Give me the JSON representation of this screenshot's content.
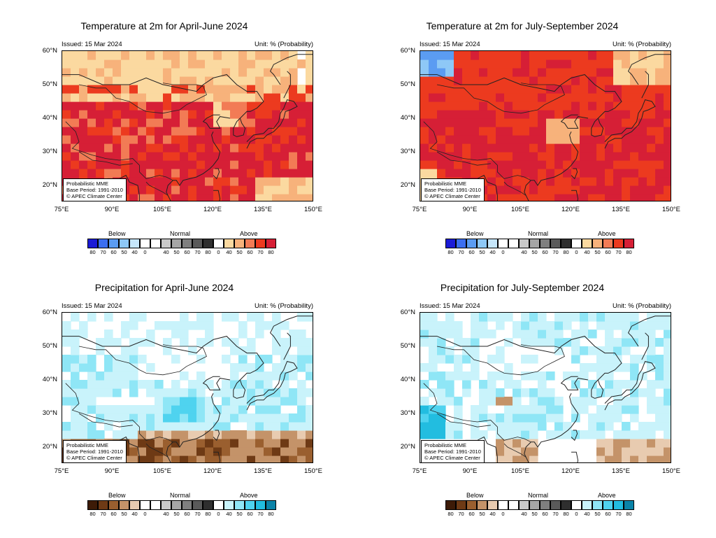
{
  "panels": [
    {
      "title": "Temperature at 2m for April-June 2024",
      "issued": "Issued: 15 Mar 2024",
      "unit": "Unit: % (Probability)",
      "variable": "temperature",
      "period": "AMJ",
      "info": [
        "Probabilistic MME",
        "Base Period: 1991-2010",
        "© APEC Climate Center"
      ],
      "dominant_category": "Above"
    },
    {
      "title": "Temperature at 2m for July-September 2024",
      "issued": "Issued: 15 Mar 2024",
      "unit": "Unit: % (Probability)",
      "variable": "temperature",
      "period": "JAS",
      "info": [
        "Probabilistic MME",
        "Base Period: 1991-2010",
        "© APEC Climate Center"
      ],
      "dominant_category": "Above"
    },
    {
      "title": "Precipitation for April-June 2024",
      "issued": "Issued: 15 Mar 2024",
      "unit": "Unit: % (Probability)",
      "variable": "precipitation",
      "period": "AMJ",
      "info": [
        "Probabilistic MME",
        "Base Period: 1991-2010",
        "© APEC Climate Center"
      ],
      "dominant_category": "Above"
    },
    {
      "title": "Precipitation for July-September 2024",
      "issued": "Issued: 15 Mar 2024",
      "unit": "Unit: % (Probability)",
      "variable": "precipitation",
      "period": "JAS",
      "info": [
        "Probabilistic MME",
        "Base Period: 1991-2010",
        "© APEC Climate Center"
      ],
      "dominant_category": "Above"
    }
  ],
  "axes": {
    "lat_labels": [
      "60°N",
      "50°N",
      "40°N",
      "30°N",
      "20°N"
    ],
    "lon_labels": [
      "75°E",
      "90°E",
      "105°E",
      "120°E",
      "135°E",
      "150°E"
    ],
    "lat_range": [
      15,
      60
    ],
    "lon_range": [
      75,
      150
    ]
  },
  "legend": {
    "categories": [
      "Below",
      "Normal",
      "Above"
    ],
    "ticks": [
      "80",
      "70",
      "60",
      "50",
      "40",
      "0",
      "40",
      "50",
      "60",
      "70",
      "80",
      "0",
      "40",
      "50",
      "60",
      "70",
      "80"
    ],
    "temperature_colors": {
      "below": [
        "#1b1bd6",
        "#3b6ef0",
        "#5b9cf2",
        "#8ec8f6",
        "#c6e6fa"
      ],
      "normal": [
        "#ffffff",
        "#ffffff",
        "#c9c9c9",
        "#a6a6a6",
        "#7f7f7f",
        "#5a5a5a",
        "#2f2f2f"
      ],
      "above": [
        "#ffffff",
        "#fbd9a0",
        "#f7b27b",
        "#f27b55",
        "#ec3a1f",
        "#d61f36"
      ]
    },
    "precipitation_colors": {
      "below": [
        "#3d1b07",
        "#6e3a15",
        "#9a5f2f",
        "#c49369",
        "#e8cbb0"
      ],
      "normal": [
        "#ffffff",
        "#ffffff",
        "#c9c9c9",
        "#a6a6a6",
        "#7f7f7f",
        "#5a5a5a",
        "#2f2f2f"
      ],
      "above": [
        "#ffffff",
        "#c9f3fb",
        "#8fe6f6",
        "#4fd3ef",
        "#22bde0",
        "#0a83a8"
      ]
    }
  }
}
